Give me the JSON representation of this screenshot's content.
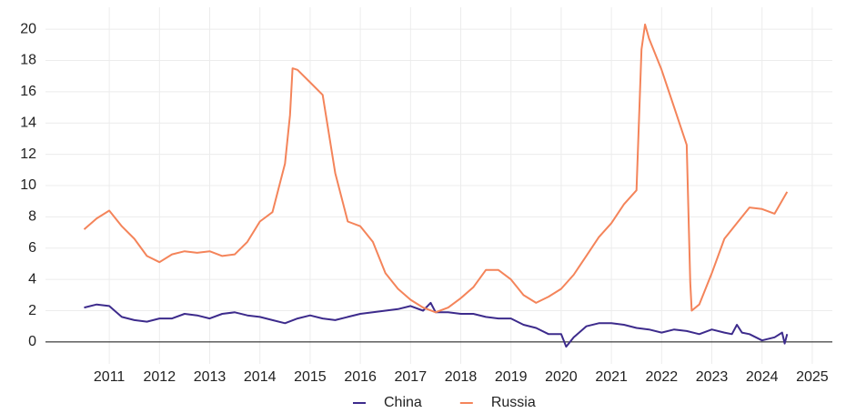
{
  "chart_data": {
    "type": "line",
    "xlim": [
      2009.73,
      2025.4
    ],
    "xticks": [
      2011,
      2012,
      2013,
      2014,
      2015,
      2016,
      2017,
      2018,
      2019,
      2020,
      2021,
      2022,
      2023,
      2024,
      2025
    ],
    "ylim": [
      -1.4,
      21.4
    ],
    "yticks": [
      0,
      2,
      4,
      6,
      8,
      10,
      12,
      14,
      16,
      18,
      20
    ],
    "grid": true,
    "legend": "bottom",
    "series": [
      {
        "name": "China",
        "color": "#3d2b8c",
        "x": [
          2010.5,
          2010.75,
          2011.0,
          2011.25,
          2011.5,
          2011.75,
          2012.0,
          2012.25,
          2012.5,
          2012.75,
          2013.0,
          2013.25,
          2013.5,
          2013.75,
          2014.0,
          2014.25,
          2014.5,
          2014.75,
          2015.0,
          2015.25,
          2015.5,
          2015.75,
          2016.0,
          2016.25,
          2016.5,
          2016.75,
          2017.0,
          2017.25,
          2017.4,
          2017.5,
          2017.75,
          2018.0,
          2018.25,
          2018.5,
          2018.75,
          2019.0,
          2019.25,
          2019.5,
          2019.75,
          2020.0,
          2020.1,
          2020.25,
          2020.5,
          2020.75,
          2021.0,
          2021.25,
          2021.5,
          2021.75,
          2022.0,
          2022.25,
          2022.5,
          2022.75,
          2023.0,
          2023.25,
          2023.4,
          2023.5,
          2023.6,
          2023.75,
          2024.0,
          2024.25,
          2024.4,
          2024.45,
          2024.5
        ],
        "values": [
          2.2,
          2.4,
          2.3,
          1.6,
          1.4,
          1.3,
          1.5,
          1.5,
          1.8,
          1.7,
          1.5,
          1.8,
          1.9,
          1.7,
          1.6,
          1.4,
          1.2,
          1.5,
          1.7,
          1.5,
          1.4,
          1.6,
          1.8,
          1.9,
          2.0,
          2.1,
          2.3,
          2.0,
          2.5,
          1.9,
          1.9,
          1.8,
          1.8,
          1.6,
          1.5,
          1.5,
          1.1,
          0.9,
          0.5,
          0.5,
          -0.3,
          0.3,
          1.0,
          1.2,
          1.2,
          1.1,
          0.9,
          0.8,
          0.6,
          0.8,
          0.7,
          0.5,
          0.8,
          0.6,
          0.5,
          1.1,
          0.6,
          0.5,
          0.1,
          0.3,
          0.6,
          -0.1,
          0.5
        ]
      },
      {
        "name": "Russia",
        "color": "#f4845a",
        "x": [
          2010.5,
          2010.75,
          2011.0,
          2011.25,
          2011.5,
          2011.75,
          2012.0,
          2012.25,
          2012.5,
          2012.75,
          2013.0,
          2013.25,
          2013.5,
          2013.75,
          2014.0,
          2014.25,
          2014.5,
          2014.6,
          2014.65,
          2014.75,
          2015.0,
          2015.25,
          2015.5,
          2015.75,
          2016.0,
          2016.25,
          2016.5,
          2016.75,
          2017.0,
          2017.25,
          2017.5,
          2017.75,
          2018.0,
          2018.25,
          2018.5,
          2018.75,
          2019.0,
          2019.25,
          2019.5,
          2019.75,
          2020.0,
          2020.25,
          2020.5,
          2020.75,
          2021.0,
          2021.25,
          2021.5,
          2021.6,
          2021.67,
          2021.75,
          2022.0,
          2022.25,
          2022.5,
          2022.57,
          2022.6,
          2022.75,
          2023.0,
          2023.25,
          2023.5,
          2023.75,
          2024.0,
          2024.25,
          2024.5
        ],
        "values": [
          7.2,
          7.9,
          8.4,
          7.4,
          6.6,
          5.5,
          5.1,
          5.6,
          5.8,
          5.7,
          5.8,
          5.5,
          5.6,
          6.4,
          7.7,
          8.3,
          11.4,
          14.5,
          17.5,
          17.4,
          16.6,
          15.8,
          10.8,
          7.7,
          7.4,
          6.4,
          4.4,
          3.4,
          2.7,
          2.2,
          1.9,
          2.2,
          2.8,
          3.5,
          4.6,
          4.6,
          4.0,
          3.0,
          2.5,
          2.9,
          3.4,
          4.3,
          5.5,
          6.7,
          7.6,
          8.8,
          9.7,
          18.7,
          20.3,
          19.4,
          17.4,
          15.0,
          12.6,
          3.8,
          2.0,
          2.4,
          4.4,
          6.6,
          7.6,
          8.6,
          8.5,
          8.2,
          9.6
        ]
      }
    ]
  }
}
